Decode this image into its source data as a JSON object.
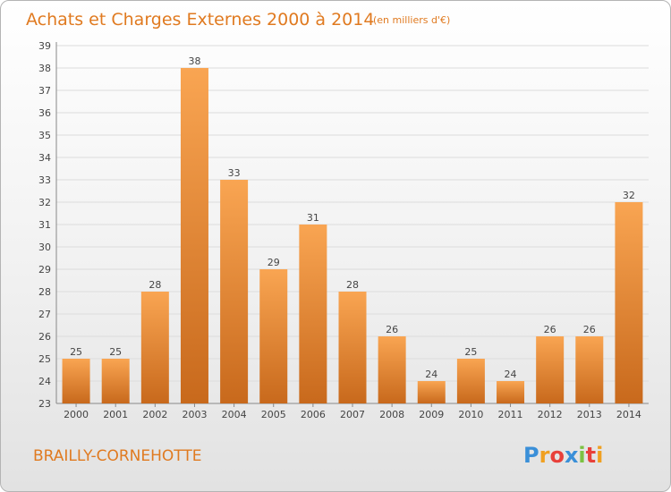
{
  "chart_data": {
    "type": "bar",
    "title": "Achats et Charges Externes 2000 à 2014",
    "subtitle": "(en milliers d'€)",
    "categories": [
      "2000",
      "2001",
      "2002",
      "2003",
      "2004",
      "2005",
      "2006",
      "2007",
      "2008",
      "2009",
      "2010",
      "2011",
      "2012",
      "2013",
      "2014"
    ],
    "values": [
      25,
      25,
      28,
      38,
      33,
      29,
      31,
      28,
      26,
      24,
      25,
      24,
      26,
      26,
      32
    ],
    "ylim": [
      23,
      39
    ],
    "yticks": [
      23,
      24,
      25,
      26,
      27,
      28,
      29,
      30,
      31,
      32,
      33,
      34,
      35,
      36,
      37,
      38,
      39
    ],
    "grid": true,
    "bar_color": "#f0912f"
  },
  "commune": "BRAILLY-CORNEHOTTE",
  "logo": {
    "letters": [
      "P",
      "r",
      "o",
      "x",
      "i",
      "t",
      "i"
    ],
    "colors": [
      "#3a8fd8",
      "#f0a020",
      "#e8403a",
      "#3a8fd8",
      "#7cc242",
      "#e8403a",
      "#f0a020"
    ]
  }
}
